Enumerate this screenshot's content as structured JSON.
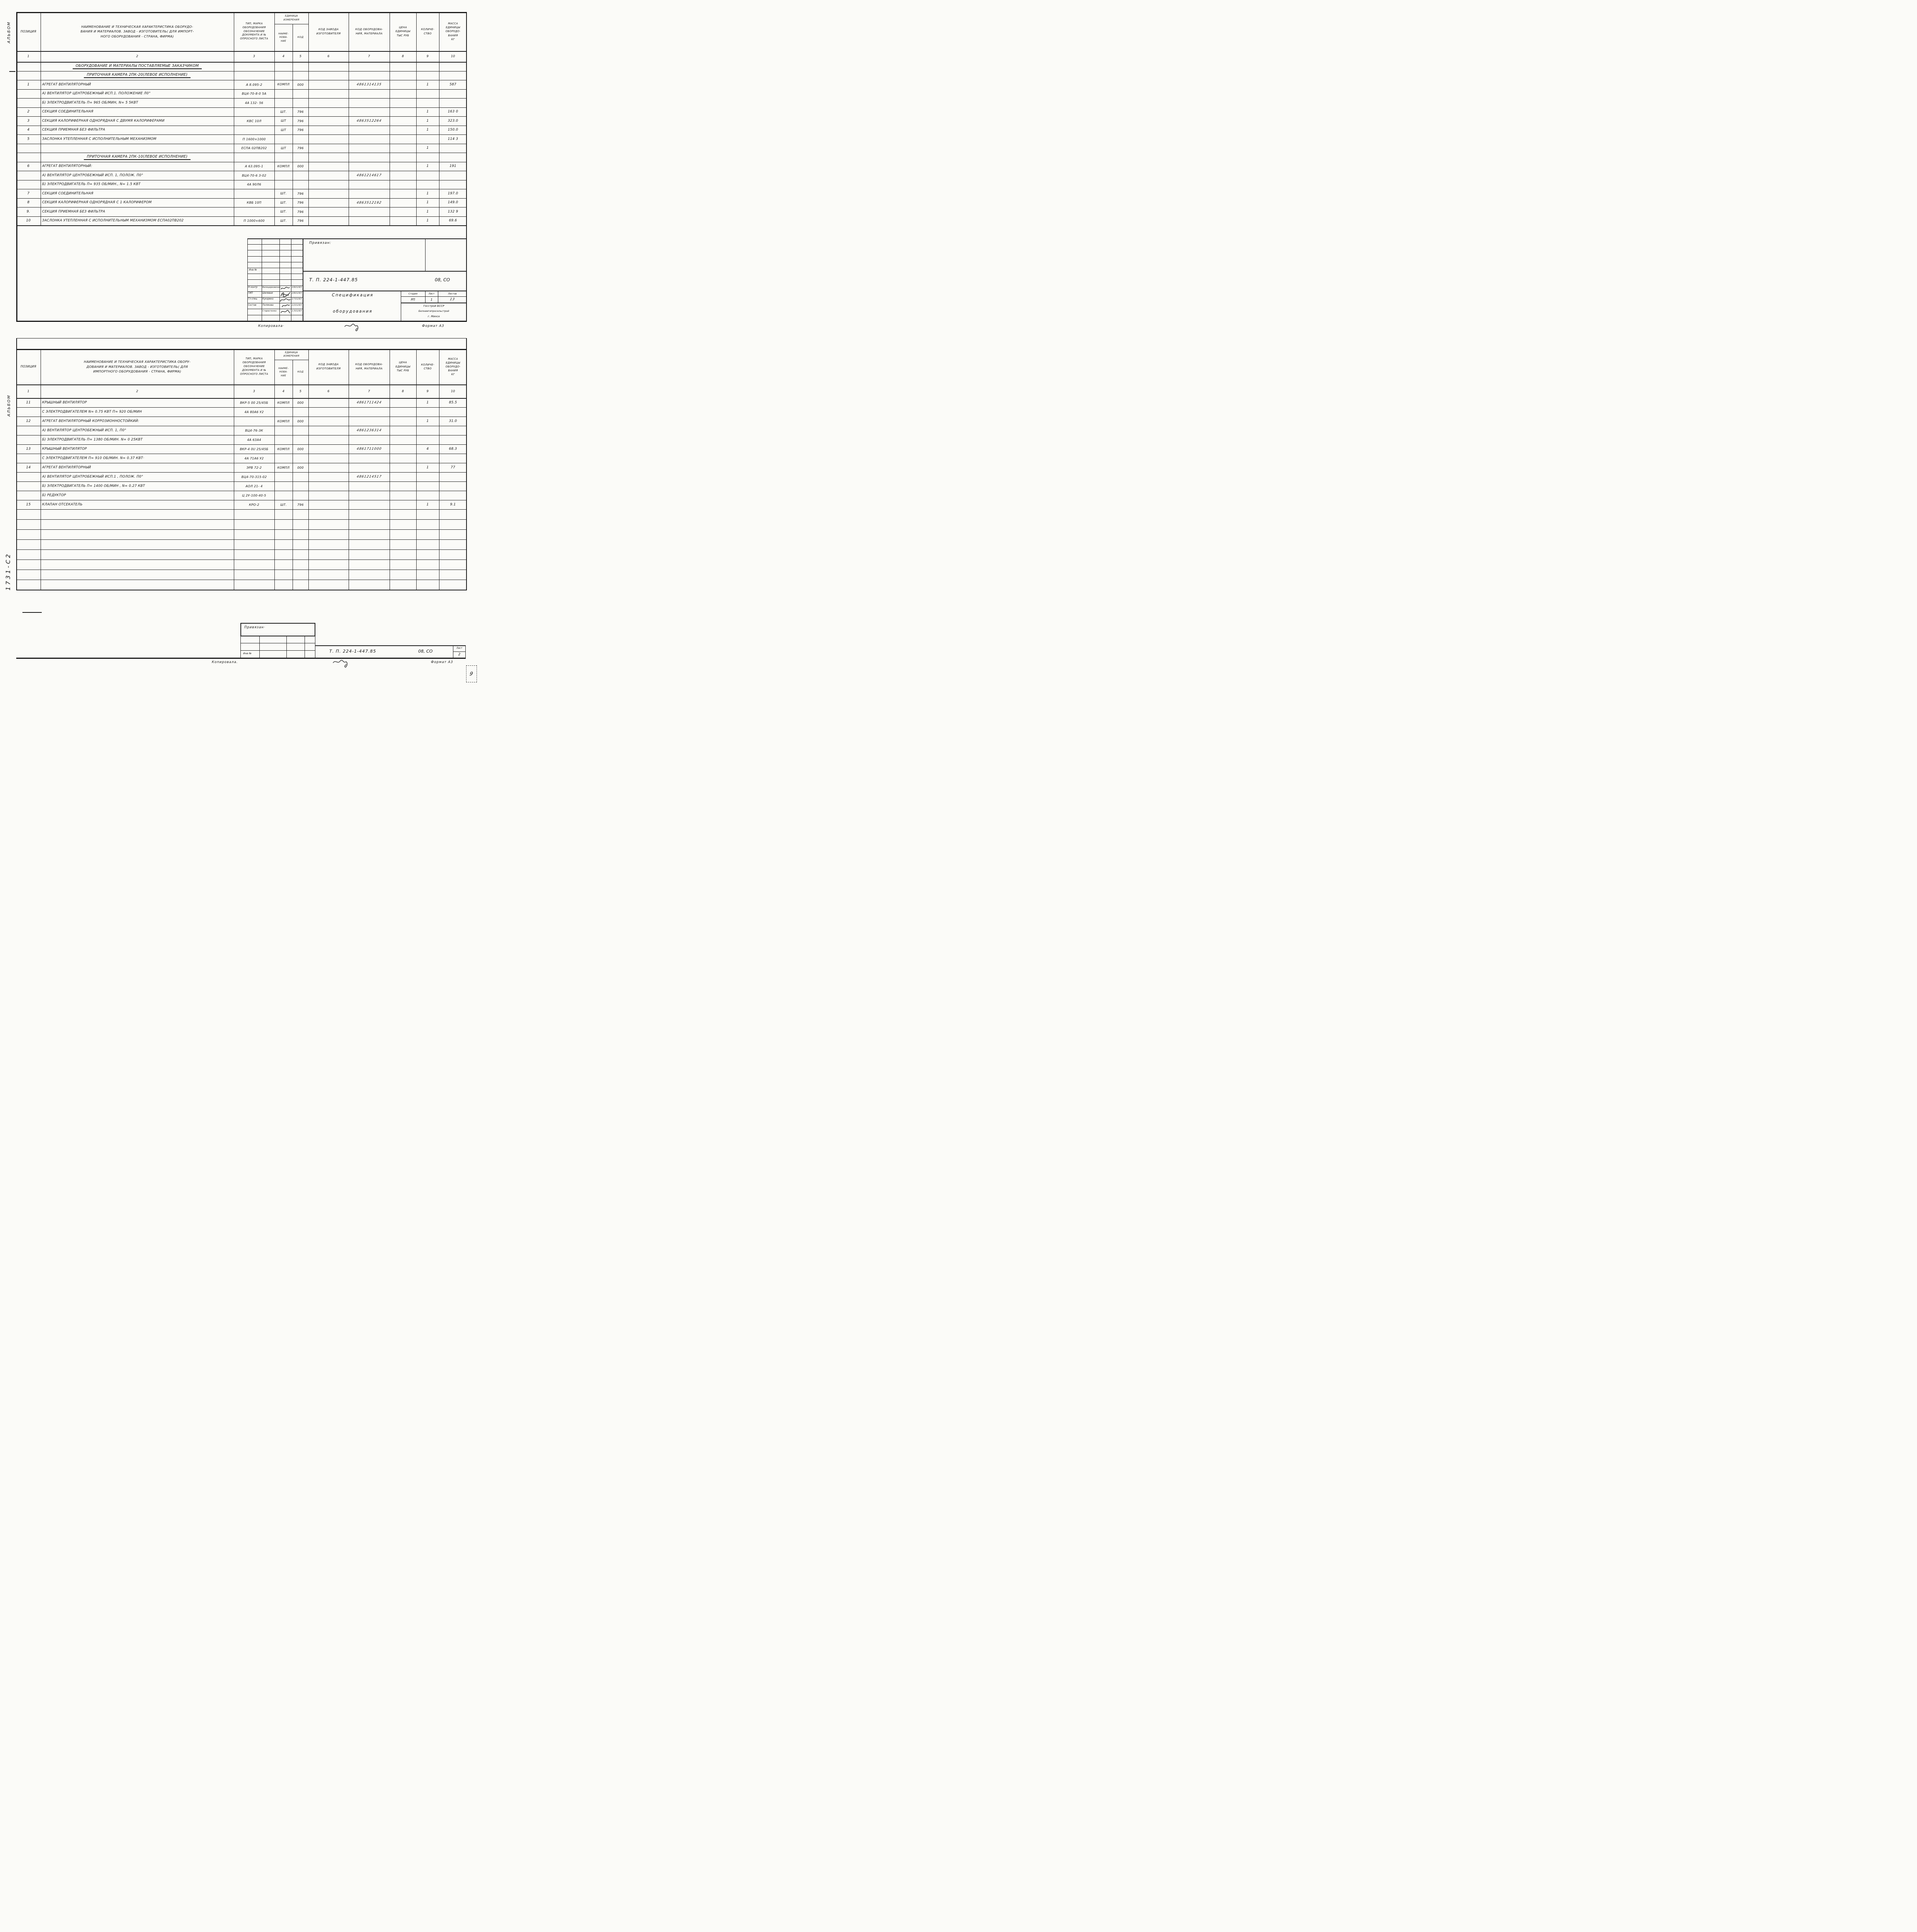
{
  "doc": {
    "album_label_1": "Альбом",
    "album_label_2": "Альбом",
    "margin_doc_no": "1731-С2",
    "corner_mark": "9"
  },
  "columns": {
    "pos": "Позиция",
    "type_lines": [
      "Тип, марка",
      "оборудования",
      "Обозначение",
      "документа и №",
      "опросного листа"
    ],
    "unit_title_lines": [
      "Единица",
      "измерения"
    ],
    "unit_name_lines": [
      "Наиме-",
      "нова-",
      "ние"
    ],
    "unit_code": "Код",
    "factory_lines": [
      "Код завода",
      "изготовителя"
    ],
    "equip_lines": [
      "Код оборудова-",
      "ния, материала"
    ],
    "price_lines": [
      "Цена",
      "единицы",
      "тыс руб"
    ],
    "qty_lines": [
      "Количе-",
      "ство"
    ],
    "mass_lines": [
      "Масса",
      "единицы",
      "оборудо-",
      "вания",
      "кг"
    ],
    "numbers": [
      "1",
      "2",
      "3",
      "4",
      "5",
      "6",
      "7",
      "8",
      "9",
      "10"
    ]
  },
  "sheet1": {
    "name_header_lines": [
      "Наименование и техническая характеристика оборудо-",
      "вания и материалов. Завод - изготовитель( Для импорт-",
      "ного оборудования - страна, фирма)"
    ],
    "rows": [
      {
        "kind": "section",
        "name": "Оборудование и материалы поставляемые заказчиком"
      },
      {
        "kind": "section",
        "name": "Приточная камера 2ПК-20(левое исполнение)"
      },
      {
        "pos": "1",
        "name": "Агрегат вентиляторный",
        "type": "А 8.095-2",
        "unit_name": "компл",
        "unit_code": "000",
        "equip_code": "4861314135",
        "qty": "1",
        "mass": "587"
      },
      {
        "name": "а) Вентилятор центробежный исп.1. положение Л0°",
        "type": "ВЦ4-70-8-0 5А"
      },
      {
        "name": "б) Электродвигатель  п= 965 об/мин,  N= 5 5кВт",
        "type": "4А 132- 56"
      },
      {
        "pos": "2",
        "name": "Секция соединительная",
        "unit_name": "шт.",
        "unit_code": "796",
        "qty": "1",
        "mass": "163 0"
      },
      {
        "pos": "3",
        "name": "Секция калориферная однорядная с двумя калориферами",
        "type": "КВС 10Л",
        "unit_name": "шт",
        "unit_code": "796",
        "equip_code": "4863512264",
        "qty": "1",
        "mass": "323.0"
      },
      {
        "pos": "4",
        "name": "Секция приемная без фильтра",
        "unit_name": "шт",
        "unit_code": "796",
        "qty": "1",
        "mass": "150.0"
      },
      {
        "pos": "5",
        "name": "Заслонка утепленная с исполнительным механизмом",
        "type": "П 1600×1000",
        "mass": "114 3"
      },
      {
        "type": "ЕСПА 02ПВ202",
        "unit_name": "шт",
        "unit_code": "796",
        "qty": "1"
      },
      {
        "kind": "section",
        "name": "Приточная камера 2ПК-10(левое исполнение)"
      },
      {
        "pos": "6",
        "name": "Агрегат вентиляторный:",
        "type": "А 63.095-1",
        "unit_name": "компл",
        "unit_code": "000",
        "qty": "1",
        "mass": "191"
      },
      {
        "name": "а) Вентилятор центробежный исп. 1, полож. П0°",
        "type": "ВЦ4-70-6 3-02",
        "equip_code": "4861214617"
      },
      {
        "name": "б) Электродвигатель  п= 935 об/мин.,  N= 1.5 кВт",
        "type": "4А 90Л6"
      },
      {
        "pos": "7",
        "name": "Секция соединительная",
        "unit_name": "шт.",
        "unit_code": "796",
        "qty": "1",
        "mass": "197.0"
      },
      {
        "pos": "8",
        "name": "Секция калориферная однорядная с 1 калорифером",
        "type": "КВБ 10П",
        "unit_name": "шт.",
        "unit_code": "796",
        "equip_code": "4863512192",
        "qty": "1",
        "mass": "149.0"
      },
      {
        "pos": "9.",
        "name": "Секция приемная без фильтра",
        "unit_name": "шт.",
        "unit_code": "796",
        "qty": "1",
        "mass": "132 9"
      },
      {
        "pos": "10",
        "name": "Заслонка утепленная с исполнительным механизмом ЕСПА02ПВ202",
        "type": "П 1000×600",
        "unit_name": "шт.",
        "unit_code": "796",
        "qty": "1",
        "mass": "69.6"
      }
    ],
    "titleblock": {
      "privyazan": "Привязан:",
      "inv_label": "Инв №",
      "doc_code": "Т. П. 224-1-447.85",
      "org_code": "08, СО",
      "sig_rows": [
        {
          "role": "Н контр",
          "name": "Белоцерковская",
          "date": "280285"
        },
        {
          "role": "ГИП",
          "name": "Шелевая",
          "date": "280285"
        },
        {
          "role": "Гл спец",
          "name": "Кукарека",
          "date": "270285"
        },
        {
          "role": "Состав",
          "name": "Полякова",
          "date": "220285"
        },
        {
          "role": "",
          "name": "Старостенко",
          "date": "130285"
        }
      ],
      "title_lines": [
        "Спецификация",
        "оборудования"
      ],
      "stage_label": "Стадия",
      "list_label": "Лист",
      "lists_label": "Листов",
      "stage": "РП",
      "list": "1",
      "lists": "13",
      "org_lines": [
        "Госстрой БССР",
        "Белниигипросельстрой",
        "г. Минск"
      ],
      "copied_label": "Копировала·",
      "format_label": "Формат А3"
    }
  },
  "sheet2": {
    "name_header_lines": [
      "Наименование и техническая характеристика обору-",
      "дования и материалов. Завод - изготовитель( для",
      "импортного оборудования - страна, фирма)"
    ],
    "rows": [
      {
        "pos": "11",
        "name": "Крышный вентилятор",
        "type": "ВКР-5 00 25/45Б",
        "unit_name": "компл",
        "unit_code": "000",
        "equip_code": "4861711424",
        "qty": "1",
        "mass": "85.5"
      },
      {
        "name": "с электродвигателем  N= 0.75 кВт  п= 920 об/мин",
        "type": "4А 80А6 У2"
      },
      {
        "pos": "12",
        "name": "Агрегат вентиляторный коррозионностойкий:",
        "unit_name": "компл",
        "unit_code": "000",
        "qty": "1",
        "mass": "31.0"
      },
      {
        "name": "а) Вентилятор центробежный исп. 1,  П0°",
        "type": "ВЦ4-76-3К",
        "equip_code": "4861236314"
      },
      {
        "name": "б) Электродвигатель  п= 1380 об/мин.  N= 0 25кВт",
        "type": "4А 63А4"
      },
      {
        "pos": "13",
        "name": "Крышный вентилятор",
        "type": "ВКР-4 0U 25/45Б",
        "unit_name": "компл",
        "unit_code": "000",
        "equip_code": "4861711000",
        "qty": "4",
        "mass": "68.3"
      },
      {
        "name": "с электродвигателем  п= 910 об/мин.  N= 0.37 кВт·",
        "type": "4А 71А6 У2"
      },
      {
        "pos": "14",
        "name": "Агрегат вентиляторный",
        "type": "ЭРВ 72-2",
        "unit_name": "компл",
        "unit_code": "000",
        "qty": "1",
        "mass": "77"
      },
      {
        "name": "а) Вентилятор центробежный исп.1 , полож. П0°",
        "type": "ВЦ4-70-315-02",
        "equip_code": "4861214517"
      },
      {
        "name": "б) Электродвигатель  п= 1400 об/мин ,  N= 0.27 кВт",
        "type": "АОЛ 21- 4"
      },
      {
        "name": "б) Редуктор",
        "type": "Ц 2У-100-40-5"
      },
      {
        "pos": "15",
        "name": "Клапан  отсекатель",
        "type": "КРО-2",
        "unit_name": "шт.",
        "unit_code": "796",
        "qty": "1",
        "mass": "9.1"
      }
    ],
    "titleblock": {
      "privyazan": "Привязан·",
      "inv_label": "Инв №",
      "doc_code": "Т. П. 224-1-447.85",
      "org_code": "08, СО",
      "list_label": "Лист",
      "list": "2",
      "copied_label": "Копировала.",
      "format_label": "Формат А3"
    }
  }
}
